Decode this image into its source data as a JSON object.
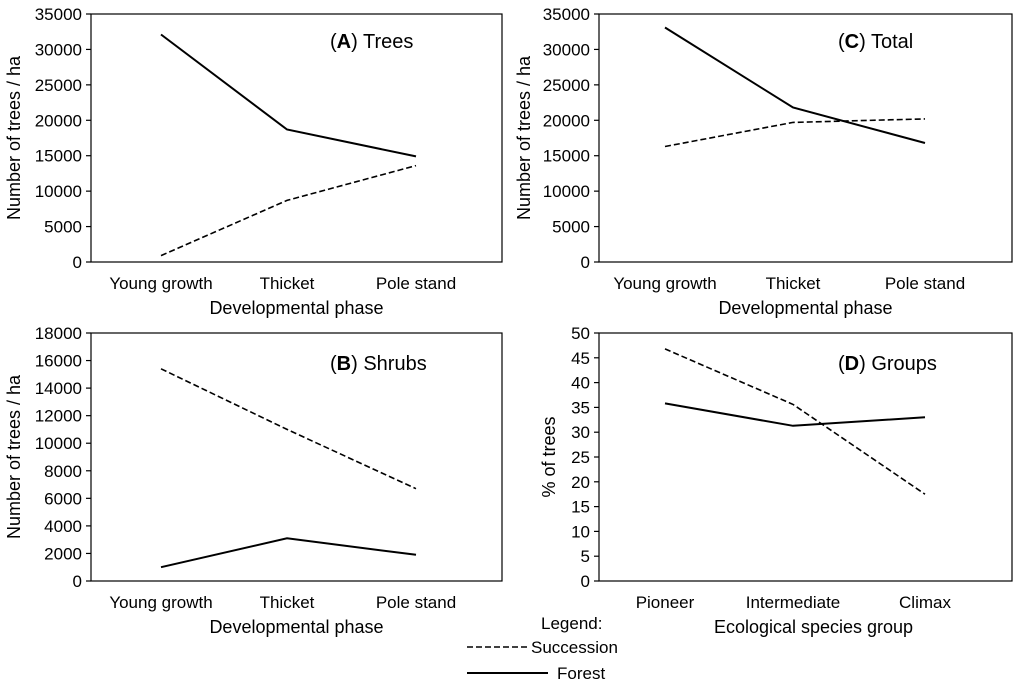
{
  "chart_data": [
    {
      "type": "line",
      "panel": "A",
      "title": "Trees",
      "xlabel": "Developmental phase",
      "ylabel": "Number of trees / ha",
      "categories": [
        "Young growth",
        "Thicket",
        "Pole stand"
      ],
      "ylim": [
        0,
        35000
      ],
      "yticks": [
        "0",
        "5000",
        "10000",
        "15000",
        "20000",
        "25000",
        "30000",
        "35000"
      ],
      "series": [
        {
          "name": "Forest",
          "style": "solid",
          "values": [
            32100,
            18700,
            14900
          ]
        },
        {
          "name": "Succession",
          "style": "dashed",
          "values": [
            900,
            8700,
            13600
          ]
        }
      ]
    },
    {
      "type": "line",
      "panel": "B",
      "title": "Shrubs",
      "xlabel": "Developmental phase",
      "ylabel": "Number of trees / ha",
      "categories": [
        "Young growth",
        "Thicket",
        "Pole stand"
      ],
      "ylim": [
        0,
        18000
      ],
      "yticks": [
        "0",
        "2000",
        "4000",
        "6000",
        "8000",
        "10000",
        "12000",
        "14000",
        "16000",
        "18000"
      ],
      "series": [
        {
          "name": "Forest",
          "style": "solid",
          "values": [
            1000,
            3100,
            1900
          ]
        },
        {
          "name": "Succession",
          "style": "dashed",
          "values": [
            15400,
            11000,
            6700
          ]
        }
      ]
    },
    {
      "type": "line",
      "panel": "C",
      "title": "Total",
      "xlabel": "Developmental phase",
      "ylabel": "Number of trees / ha",
      "categories": [
        "Young growth",
        "Thicket",
        "Pole stand"
      ],
      "ylim": [
        0,
        35000
      ],
      "yticks": [
        "0",
        "5000",
        "10000",
        "15000",
        "20000",
        "25000",
        "30000",
        "35000"
      ],
      "series": [
        {
          "name": "Forest",
          "style": "solid",
          "values": [
            33100,
            21800,
            16800
          ]
        },
        {
          "name": "Succession",
          "style": "dashed",
          "values": [
            16300,
            19700,
            20200
          ]
        }
      ]
    },
    {
      "type": "line",
      "panel": "D",
      "title": "Groups",
      "xlabel": "Ecological species group",
      "ylabel": "% of trees",
      "categories": [
        "Pioneer",
        "Intermediate",
        "Climax"
      ],
      "ylim": [
        0,
        50
      ],
      "yticks": [
        "0",
        "5",
        "10",
        "15",
        "20",
        "25",
        "30",
        "35",
        "40",
        "45",
        "50"
      ],
      "series": [
        {
          "name": "Forest",
          "style": "solid",
          "values": [
            35.8,
            31.3,
            33.0
          ]
        },
        {
          "name": "Succession",
          "style": "dashed",
          "values": [
            46.8,
            35.6,
            17.5
          ]
        }
      ]
    }
  ],
  "legend": {
    "title": "Legend:",
    "entries": [
      "Succession",
      "Forest"
    ]
  }
}
